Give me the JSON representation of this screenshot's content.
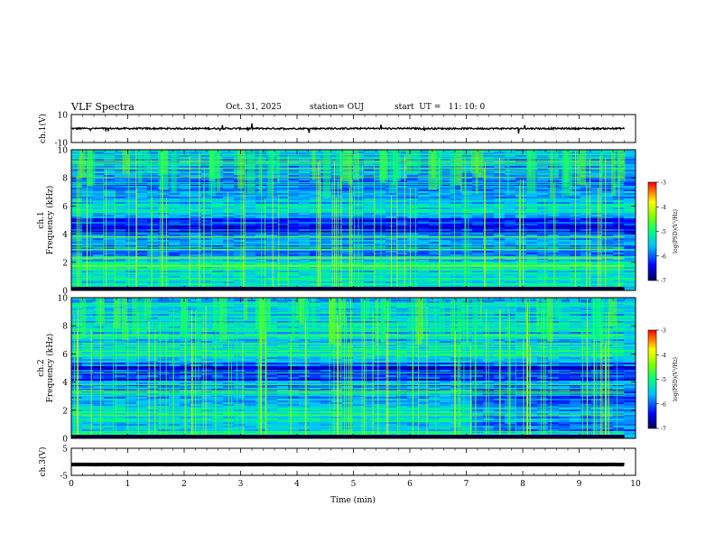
{
  "header": {
    "title": "VLF Spectra",
    "date": "Oct. 31, 2025",
    "station": "station= OUJ",
    "start": "start  UT =   11: 10: 0"
  },
  "colors": {
    "background": "#ffffff",
    "axis": "#000000",
    "spectrogram_low": "#000055",
    "spectrogram_high": "#ff0000"
  },
  "chart_data": [
    {
      "name": "ch1-waveform",
      "type": "line",
      "ylabel": "ch.1(V)",
      "ylim": [
        -10,
        10
      ],
      "yticks": [
        "10",
        "-10"
      ],
      "xlim": [
        0,
        10
      ],
      "description_values": {
        "baseline": 0,
        "typical_amplitude": 1
      }
    },
    {
      "name": "ch1-spectrogram",
      "type": "heatmap",
      "ylabel": "ch.1\nFrequency (kHz)",
      "ylabel_lines": [
        "ch.1",
        "Frequency (kHz)"
      ],
      "ylim": [
        0,
        10
      ],
      "yticks": [
        "0",
        "2",
        "4",
        "6",
        "8",
        "10"
      ],
      "xlim": [
        0,
        10
      ],
      "colorbar": {
        "label": "log(PSD)(V²/Hz)",
        "range": [
          -7,
          -3
        ],
        "ticks": [
          "-3",
          "-4",
          "-5",
          "-6",
          "-7"
        ]
      }
    },
    {
      "name": "ch2-spectrogram",
      "type": "heatmap",
      "ylabel_lines": [
        "ch.2",
        "Frequency (kHz)"
      ],
      "ylim": [
        0,
        10
      ],
      "yticks": [
        "0",
        "2",
        "4",
        "6",
        "8",
        "10"
      ],
      "xlim": [
        0,
        10
      ],
      "colorbar": {
        "label": "log(PSD)(V²/Hz)",
        "range": [
          -7,
          -3
        ],
        "ticks": [
          "-3",
          "-4",
          "-5",
          "-6",
          "-7"
        ]
      }
    },
    {
      "name": "ch3-waveform",
      "type": "line",
      "ylabel": "ch.3(V)",
      "ylim": [
        -5,
        5
      ],
      "yticks": [
        "5",
        "-5"
      ],
      "xlim": [
        0,
        10
      ],
      "description_values": {
        "baseline": -1,
        "typical_amplitude": 0.2
      }
    }
  ],
  "xaxis": {
    "label": "Time (min)",
    "ticks": [
      "0",
      "1",
      "2",
      "3",
      "4",
      "5",
      "6",
      "7",
      "8",
      "9",
      "10"
    ],
    "data_end": 9.8
  }
}
